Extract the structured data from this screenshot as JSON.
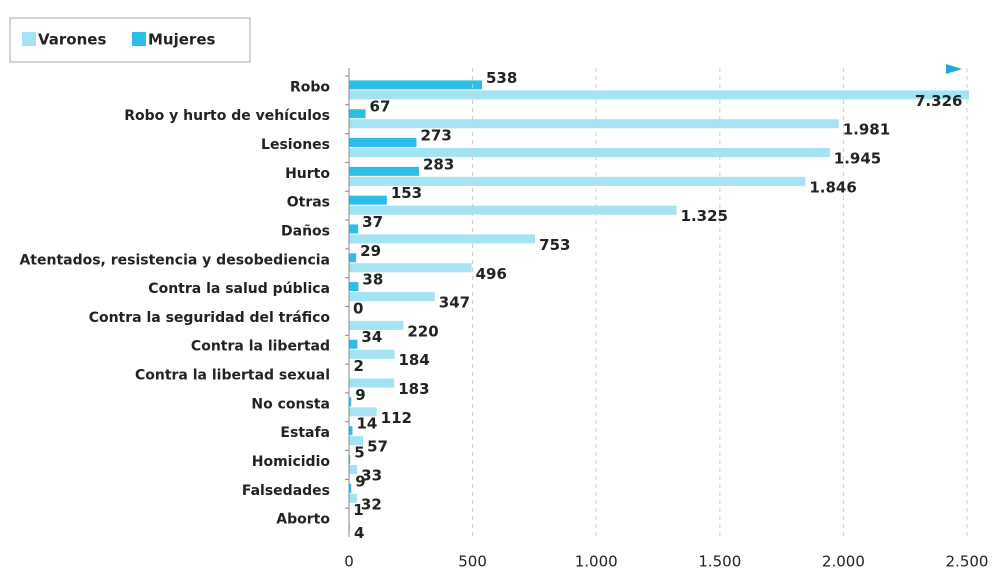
{
  "chart_data": {
    "type": "bar",
    "orientation": "horizontal",
    "categories": [
      "Robo",
      "Robo y hurto de vehículos",
      "Lesiones",
      "Hurto",
      "Otras",
      "Daños",
      "Atentados, resistencia y desobediencia",
      "Contra la salud pública",
      "Contra la seguridad del tráfico",
      "Contra la libertad",
      "Contra la libertad sexual",
      "No consta",
      "Estafa",
      "Homicidio",
      "Falsedades",
      "Aborto"
    ],
    "series": [
      {
        "name": "Varones",
        "color": "#a3e3f3",
        "values": [
          7326,
          1981,
          1945,
          1846,
          1325,
          753,
          496,
          347,
          220,
          184,
          183,
          112,
          57,
          33,
          32,
          4
        ],
        "value_labels": [
          "7.326",
          "1.981",
          "1.945",
          "1.846",
          "1.325",
          "753",
          "496",
          "347",
          "220",
          "184",
          "183",
          "112",
          "57",
          "33",
          "32",
          "4"
        ]
      },
      {
        "name": "Mujeres",
        "color": "#2dbde6",
        "values": [
          538,
          67,
          273,
          283,
          153,
          37,
          29,
          38,
          0,
          34,
          2,
          9,
          14,
          5,
          9,
          1
        ],
        "value_labels": [
          "538",
          "67",
          "273",
          "283",
          "153",
          "37",
          "29",
          "38",
          "0",
          "34",
          "2",
          "9",
          "14",
          "5",
          "9",
          "1"
        ]
      }
    ],
    "xlim": [
      0,
      2500
    ],
    "xticks": [
      0,
      500,
      {
        "value": 1000,
        "label": "1.000"
      },
      {
        "value": 1500,
        "label": "1.500"
      },
      {
        "value": 2000,
        "label": "2.000"
      },
      {
        "value": 2500,
        "label": "2.500"
      }
    ],
    "grid": true,
    "legend": "top-left"
  }
}
